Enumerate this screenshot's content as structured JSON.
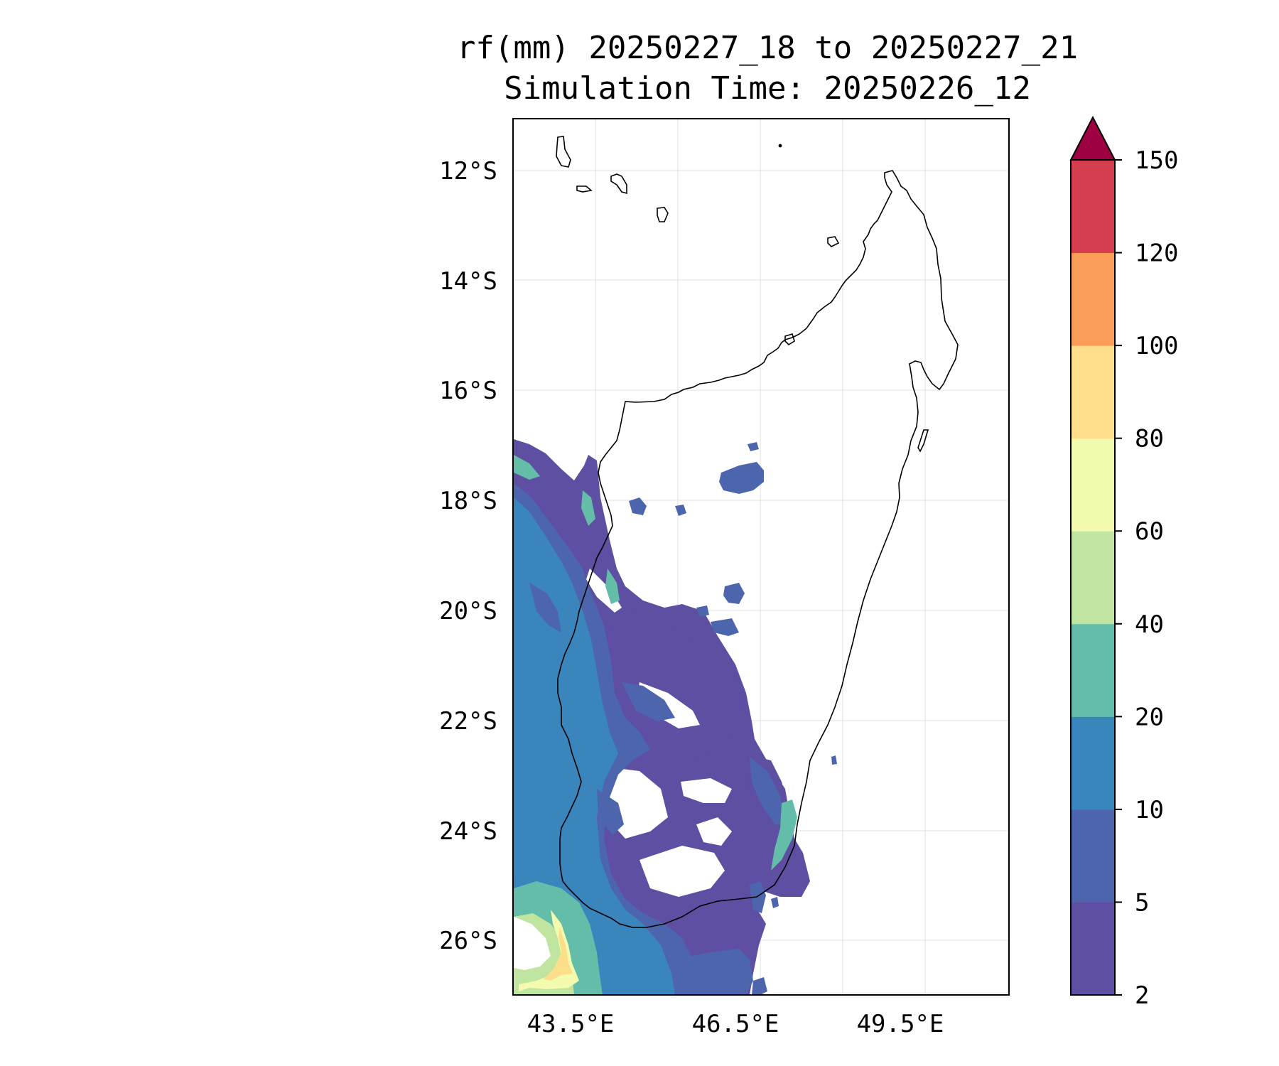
{
  "title": {
    "line1": "rf(mm) 20250227_18 to 20250227_21",
    "line2": "Simulation Time: 20250226_12"
  },
  "map": {
    "region": "Madagascar",
    "lon_range": [
      42.0,
      51.0
    ],
    "lat_range": [
      -27.0,
      -11.0
    ],
    "lat_ticks": [
      "12°S",
      "14°S",
      "16°S",
      "18°S",
      "20°S",
      "22°S",
      "24°S",
      "26°S"
    ],
    "lon_ticks": [
      "43.5°E",
      "46.5°E",
      "49.5°E"
    ],
    "gridlines": true
  },
  "colorbar": {
    "ticks": [
      "2",
      "5",
      "10",
      "20",
      "40",
      "60",
      "80",
      "100",
      "120",
      "150"
    ],
    "colors": [
      "#5e4fa2",
      "#4d65ad",
      "#3a86bc",
      "#63bda8",
      "#bfe5a0",
      "#f3fbae",
      "#fddf8b",
      "#f99d59",
      "#d53e4f"
    ],
    "extend_color": "#9e0142",
    "extend": "max"
  }
}
